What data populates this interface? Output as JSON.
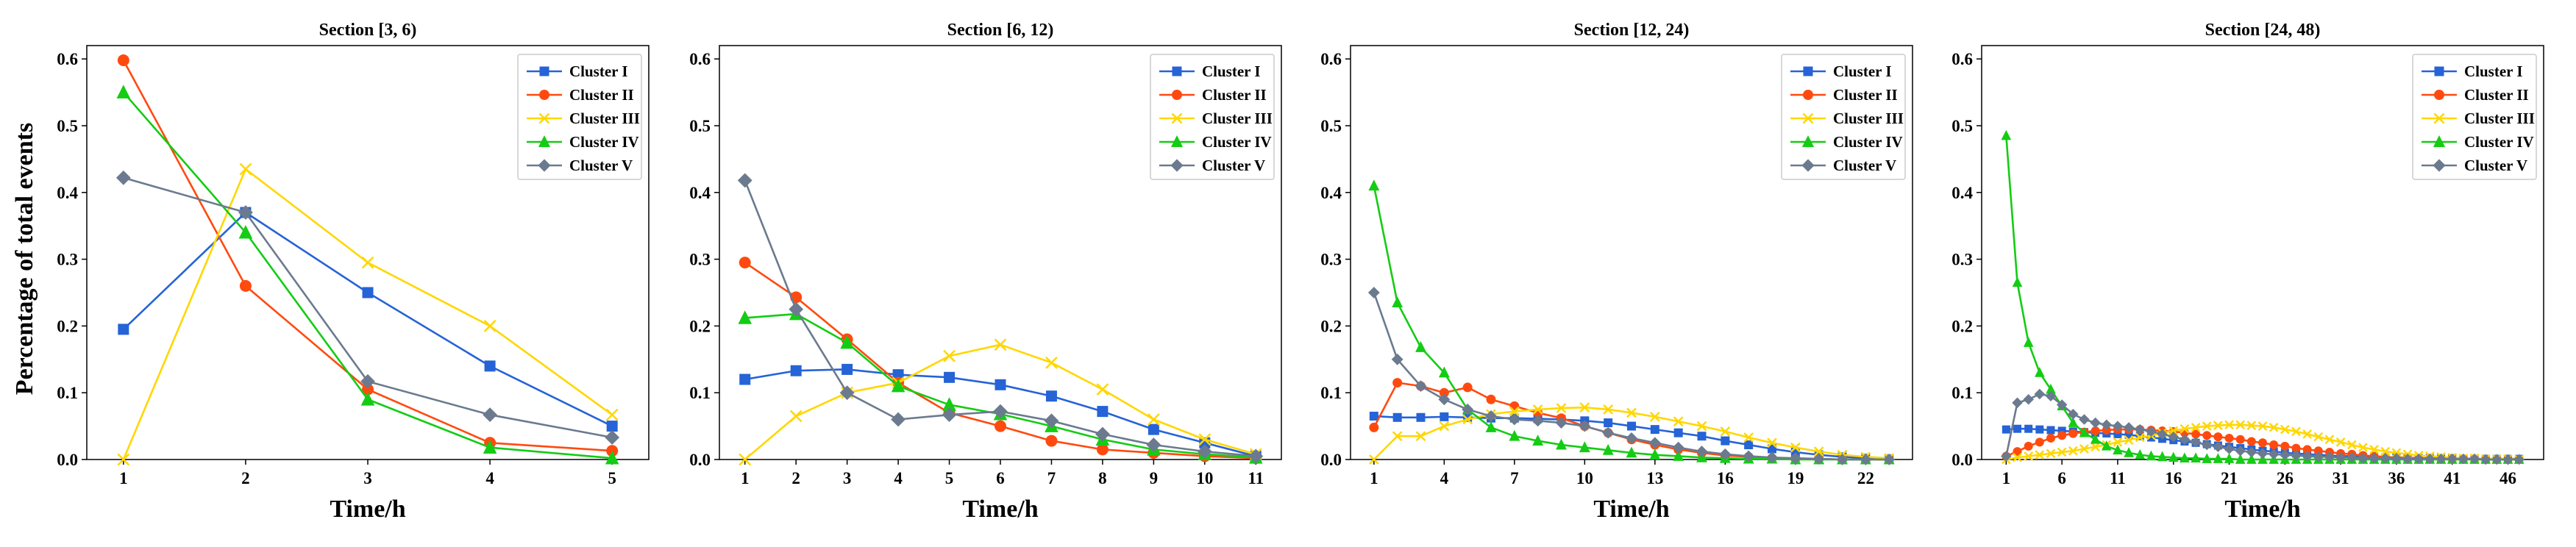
{
  "figure": {
    "ylabel": "Percentage of total events"
  },
  "legend_entries": [
    "Cluster I",
    "Cluster II",
    "Cluster III",
    "Cluster IV",
    "Cluster V"
  ],
  "series_style": [
    {
      "name": "Cluster I",
      "color": "#2563d6",
      "marker": "square"
    },
    {
      "name": "Cluster II",
      "color": "#ff4a0f",
      "marker": "circle"
    },
    {
      "name": "Cluster III",
      "color": "#ffd700",
      "marker": "x"
    },
    {
      "name": "Cluster IV",
      "color": "#14cc14",
      "marker": "triangle"
    },
    {
      "name": "Cluster V",
      "color": "#6b7a8f",
      "marker": "diamond"
    }
  ],
  "chart_data": [
    {
      "type": "line",
      "title": "Section [3, 6)",
      "xlabel": "Time/h",
      "ylabel": "Percentage of total events",
      "xlim": [
        0.7,
        5.3
      ],
      "ylim": [
        0,
        0.62
      ],
      "xticks": [
        1,
        2,
        3,
        4,
        5
      ],
      "yticks": [
        0,
        0.1,
        0.2,
        0.3,
        0.4,
        0.5,
        0.6
      ],
      "ytick_labels": [
        "0.0",
        "0.1",
        "0.2",
        "0.3",
        "0.4",
        "0.5",
        "0.6"
      ],
      "legend_position": "top-right",
      "x": [
        1,
        2,
        3,
        4,
        5
      ],
      "series": [
        {
          "name": "Cluster I",
          "values": [
            0.195,
            0.37,
            0.25,
            0.14,
            0.05
          ]
        },
        {
          "name": "Cluster II",
          "values": [
            0.598,
            0.26,
            0.105,
            0.025,
            0.013
          ]
        },
        {
          "name": "Cluster III",
          "values": [
            0.0,
            0.435,
            0.295,
            0.2,
            0.067
          ]
        },
        {
          "name": "Cluster IV",
          "values": [
            0.55,
            0.34,
            0.09,
            0.018,
            0.002
          ]
        },
        {
          "name": "Cluster V",
          "values": [
            0.422,
            0.37,
            0.117,
            0.067,
            0.033
          ]
        }
      ]
    },
    {
      "type": "line",
      "title": "Section [6, 12)",
      "xlabel": "Time/h",
      "ylabel": "",
      "xlim": [
        0.5,
        11.5
      ],
      "ylim": [
        0,
        0.62
      ],
      "xticks": [
        1,
        2,
        3,
        4,
        5,
        6,
        7,
        8,
        9,
        10,
        11
      ],
      "yticks": [
        0,
        0.1,
        0.2,
        0.3,
        0.4,
        0.5,
        0.6
      ],
      "ytick_labels": [
        "0.0",
        "0.1",
        "0.2",
        "0.3",
        "0.4",
        "0.5",
        "0.6"
      ],
      "legend_position": "top-right",
      "x": [
        1,
        2,
        3,
        4,
        5,
        6,
        7,
        8,
        9,
        10,
        11
      ],
      "series": [
        {
          "name": "Cluster I",
          "values": [
            0.12,
            0.133,
            0.135,
            0.127,
            0.123,
            0.112,
            0.095,
            0.072,
            0.045,
            0.025,
            0.005
          ]
        },
        {
          "name": "Cluster II",
          "values": [
            0.295,
            0.243,
            0.18,
            0.115,
            0.07,
            0.05,
            0.028,
            0.015,
            0.01,
            0.005,
            0.002
          ]
        },
        {
          "name": "Cluster III",
          "values": [
            0.0,
            0.065,
            0.1,
            0.115,
            0.155,
            0.172,
            0.145,
            0.105,
            0.06,
            0.03,
            0.008
          ]
        },
        {
          "name": "Cluster IV",
          "values": [
            0.212,
            0.218,
            0.175,
            0.11,
            0.082,
            0.068,
            0.05,
            0.03,
            0.015,
            0.008,
            0.003
          ]
        },
        {
          "name": "Cluster V",
          "values": [
            0.418,
            0.225,
            0.1,
            0.06,
            0.067,
            0.072,
            0.058,
            0.038,
            0.022,
            0.012,
            0.005
          ]
        }
      ]
    },
    {
      "type": "line",
      "title": "Section [12, 24)",
      "xlabel": "Time/h",
      "ylabel": "",
      "xlim": [
        0,
        24
      ],
      "ylim": [
        0,
        0.62
      ],
      "xticks": [
        1,
        4,
        7,
        10,
        13,
        16,
        19,
        22
      ],
      "yticks": [
        0,
        0.1,
        0.2,
        0.3,
        0.4,
        0.5,
        0.6
      ],
      "ytick_labels": [
        "0.0",
        "0.1",
        "0.2",
        "0.3",
        "0.4",
        "0.5",
        "0.6"
      ],
      "legend_position": "top-right",
      "x": [
        1,
        2,
        3,
        4,
        5,
        6,
        7,
        8,
        9,
        10,
        11,
        12,
        13,
        14,
        15,
        16,
        17,
        18,
        19,
        20,
        21,
        22,
        23
      ],
      "series": [
        {
          "name": "Cluster I",
          "values": [
            0.065,
            0.063,
            0.063,
            0.064,
            0.063,
            0.062,
            0.062,
            0.061,
            0.06,
            0.058,
            0.055,
            0.05,
            0.045,
            0.04,
            0.035,
            0.028,
            0.022,
            0.016,
            0.011,
            0.007,
            0.004,
            0.002,
            0.001
          ]
        },
        {
          "name": "Cluster II",
          "values": [
            0.048,
            0.115,
            0.11,
            0.1,
            0.108,
            0.09,
            0.08,
            0.07,
            0.062,
            0.05,
            0.04,
            0.03,
            0.022,
            0.015,
            0.01,
            0.006,
            0.004,
            0.002,
            0.001,
            0.001,
            0.0,
            0.0,
            0.0
          ]
        },
        {
          "name": "Cluster III",
          "values": [
            0.0,
            0.035,
            0.035,
            0.05,
            0.06,
            0.068,
            0.072,
            0.075,
            0.077,
            0.078,
            0.075,
            0.07,
            0.064,
            0.057,
            0.05,
            0.042,
            0.033,
            0.025,
            0.018,
            0.012,
            0.007,
            0.004,
            0.002
          ]
        },
        {
          "name": "Cluster IV",
          "values": [
            0.41,
            0.235,
            0.168,
            0.13,
            0.075,
            0.048,
            0.035,
            0.028,
            0.022,
            0.018,
            0.014,
            0.01,
            0.007,
            0.005,
            0.003,
            0.002,
            0.001,
            0.001,
            0.0,
            0.0,
            0.0,
            0.0,
            0.0
          ]
        },
        {
          "name": "Cluster V",
          "values": [
            0.25,
            0.15,
            0.11,
            0.09,
            0.075,
            0.065,
            0.06,
            0.058,
            0.055,
            0.05,
            0.04,
            0.032,
            0.025,
            0.018,
            0.012,
            0.008,
            0.005,
            0.003,
            0.002,
            0.001,
            0.0,
            0.0,
            0.0
          ]
        }
      ]
    },
    {
      "type": "line",
      "title": "Section [24, 48)",
      "xlabel": "Time/h",
      "ylabel": "",
      "xlim": [
        -1.2,
        49.2
      ],
      "ylim": [
        0,
        0.62
      ],
      "xticks": [
        1,
        6,
        11,
        16,
        21,
        26,
        31,
        36,
        41,
        46
      ],
      "yticks": [
        0,
        0.1,
        0.2,
        0.3,
        0.4,
        0.5,
        0.6
      ],
      "ytick_labels": [
        "0.0",
        "0.1",
        "0.2",
        "0.3",
        "0.4",
        "0.5",
        "0.6"
      ],
      "legend_position": "top-right",
      "x": [
        1,
        2,
        3,
        4,
        5,
        6,
        7,
        8,
        9,
        10,
        11,
        12,
        13,
        14,
        15,
        16,
        17,
        18,
        19,
        20,
        21,
        22,
        23,
        24,
        25,
        26,
        27,
        28,
        29,
        30,
        31,
        32,
        33,
        34,
        35,
        36,
        37,
        38,
        39,
        40,
        41,
        42,
        43,
        44,
        45,
        46,
        47
      ],
      "series": [
        {
          "name": "Cluster I",
          "values": [
            0.045,
            0.046,
            0.046,
            0.045,
            0.044,
            0.043,
            0.042,
            0.041,
            0.04,
            0.039,
            0.038,
            0.037,
            0.035,
            0.033,
            0.031,
            0.029,
            0.027,
            0.025,
            0.023,
            0.021,
            0.019,
            0.017,
            0.015,
            0.013,
            0.012,
            0.01,
            0.009,
            0.008,
            0.007,
            0.006,
            0.005,
            0.005,
            0.004,
            0.004,
            0.003,
            0.003,
            0.003,
            0.002,
            0.002,
            0.002,
            0.002,
            0.001,
            0.001,
            0.001,
            0.001,
            0.001,
            0.001
          ]
        },
        {
          "name": "Cluster II",
          "values": [
            0.005,
            0.012,
            0.02,
            0.026,
            0.032,
            0.036,
            0.039,
            0.041,
            0.043,
            0.044,
            0.045,
            0.045,
            0.045,
            0.044,
            0.043,
            0.042,
            0.04,
            0.038,
            0.036,
            0.034,
            0.032,
            0.03,
            0.027,
            0.025,
            0.022,
            0.02,
            0.017,
            0.015,
            0.013,
            0.011,
            0.009,
            0.008,
            0.006,
            0.005,
            0.004,
            0.003,
            0.003,
            0.002,
            0.002,
            0.001,
            0.001,
            0.001,
            0.001,
            0.0,
            0.0,
            0.0,
            0.0
          ]
        },
        {
          "name": "Cluster III",
          "values": [
            0.0,
            0.003,
            0.005,
            0.007,
            0.009,
            0.011,
            0.013,
            0.016,
            0.019,
            0.022,
            0.026,
            0.029,
            0.033,
            0.036,
            0.04,
            0.043,
            0.046,
            0.048,
            0.05,
            0.051,
            0.052,
            0.052,
            0.051,
            0.05,
            0.048,
            0.045,
            0.042,
            0.038,
            0.034,
            0.03,
            0.026,
            0.022,
            0.018,
            0.015,
            0.012,
            0.01,
            0.008,
            0.006,
            0.005,
            0.004,
            0.003,
            0.002,
            0.002,
            0.001,
            0.001,
            0.001,
            0.0
          ]
        },
        {
          "name": "Cluster IV",
          "values": [
            0.485,
            0.265,
            0.175,
            0.13,
            0.105,
            0.08,
            0.055,
            0.04,
            0.03,
            0.02,
            0.014,
            0.01,
            0.007,
            0.005,
            0.004,
            0.003,
            0.002,
            0.002,
            0.001,
            0.001,
            0.001,
            0.0,
            0.0,
            0.0,
            0.0,
            0.0,
            0.0,
            0.0,
            0.0,
            0.0,
            0.0,
            0.0,
            0.0,
            0.0,
            0.0,
            0.0,
            0.0,
            0.0,
            0.0,
            0.0,
            0.0,
            0.0,
            0.0,
            0.0,
            0.0,
            0.0,
            0.0
          ]
        },
        {
          "name": "Cluster V",
          "values": [
            0.005,
            0.085,
            0.09,
            0.098,
            0.095,
            0.082,
            0.068,
            0.06,
            0.055,
            0.052,
            0.05,
            0.048,
            0.045,
            0.042,
            0.038,
            0.034,
            0.03,
            0.026,
            0.022,
            0.019,
            0.016,
            0.013,
            0.011,
            0.009,
            0.008,
            0.007,
            0.006,
            0.005,
            0.004,
            0.004,
            0.003,
            0.003,
            0.002,
            0.002,
            0.002,
            0.002,
            0.001,
            0.001,
            0.001,
            0.001,
            0.001,
            0.001,
            0.001,
            0.0,
            0.0,
            0.0,
            0.0
          ]
        }
      ]
    }
  ]
}
